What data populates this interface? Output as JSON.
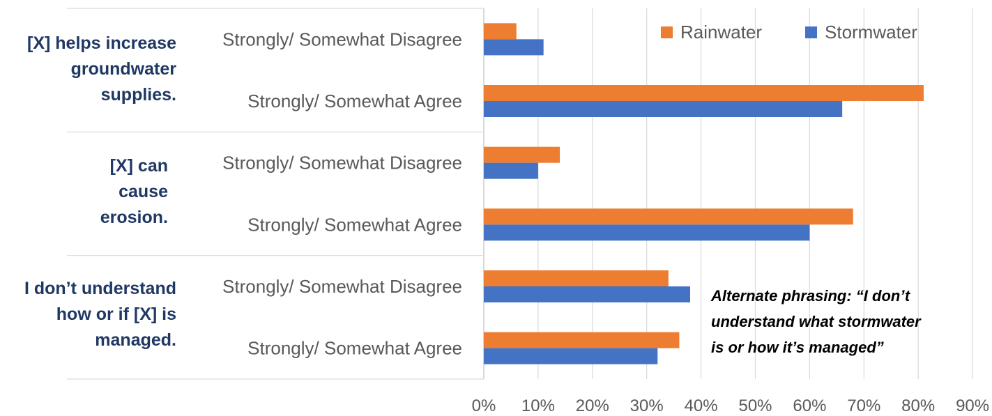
{
  "chart_data": {
    "type": "bar",
    "orientation": "horizontal",
    "title": "",
    "xlabel": "",
    "ylabel": "",
    "xlim": [
      0,
      90
    ],
    "ticks": [
      "0%",
      "10%",
      "20%",
      "30%",
      "40%",
      "50%",
      "60%",
      "70%",
      "80%",
      "90%"
    ],
    "grid": true,
    "legend_position": "top-right",
    "series": [
      {
        "name": "Rainwater",
        "color": "#ed7d31",
        "values": [
          6,
          81,
          14,
          68,
          34,
          36
        ]
      },
      {
        "name": "Stormwater",
        "color": "#4472c4",
        "values": [
          11,
          66,
          10,
          60,
          38,
          32
        ]
      }
    ],
    "categories": [
      "Strongly/ Somewhat Disagree",
      "Strongly/ Somewhat Agree",
      "Strongly/ Somewhat Disagree",
      "Strongly/ Somewhat Agree",
      "Strongly/ Somewhat Disagree",
      "Strongly/ Somewhat Agree"
    ],
    "groups": [
      {
        "lines": [
          "[X] helps increase",
          "groundwater",
          "supplies."
        ]
      },
      {
        "lines": [
          "[X] can",
          "cause",
          "erosion."
        ]
      },
      {
        "lines": [
          "I don’t understand",
          "how or if [X] is",
          "managed."
        ]
      }
    ],
    "annotation": [
      "Alternate phrasing: “I don’t",
      "understand what stormwater",
      "is or how it’s managed”"
    ]
  }
}
